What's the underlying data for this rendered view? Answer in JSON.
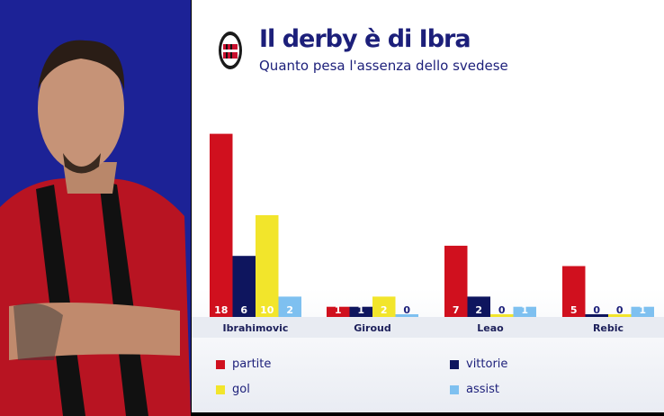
{
  "header": {
    "title": "Il derby è di Ibra",
    "subtitle": "Quanto pesa l'assenza dello svedese"
  },
  "colors": {
    "partite": "#d0101e",
    "vittorie": "#0e155e",
    "gol": "#f2e52b",
    "assist": "#7ec0f0",
    "panel": "#1c2296",
    "title": "#1c1f7a"
  },
  "chart_data": {
    "type": "bar",
    "categories": [
      "Ibrahimovic",
      "Giroud",
      "Leao",
      "Rebic"
    ],
    "series": [
      {
        "name": "partite",
        "values": [
          18,
          1,
          7,
          5
        ]
      },
      {
        "name": "vittorie",
        "values": [
          6,
          1,
          2,
          0
        ]
      },
      {
        "name": "gol",
        "values": [
          10,
          2,
          0,
          0
        ]
      },
      {
        "name": "assist",
        "values": [
          2,
          0,
          1,
          1
        ]
      }
    ],
    "legend": "bottom"
  }
}
